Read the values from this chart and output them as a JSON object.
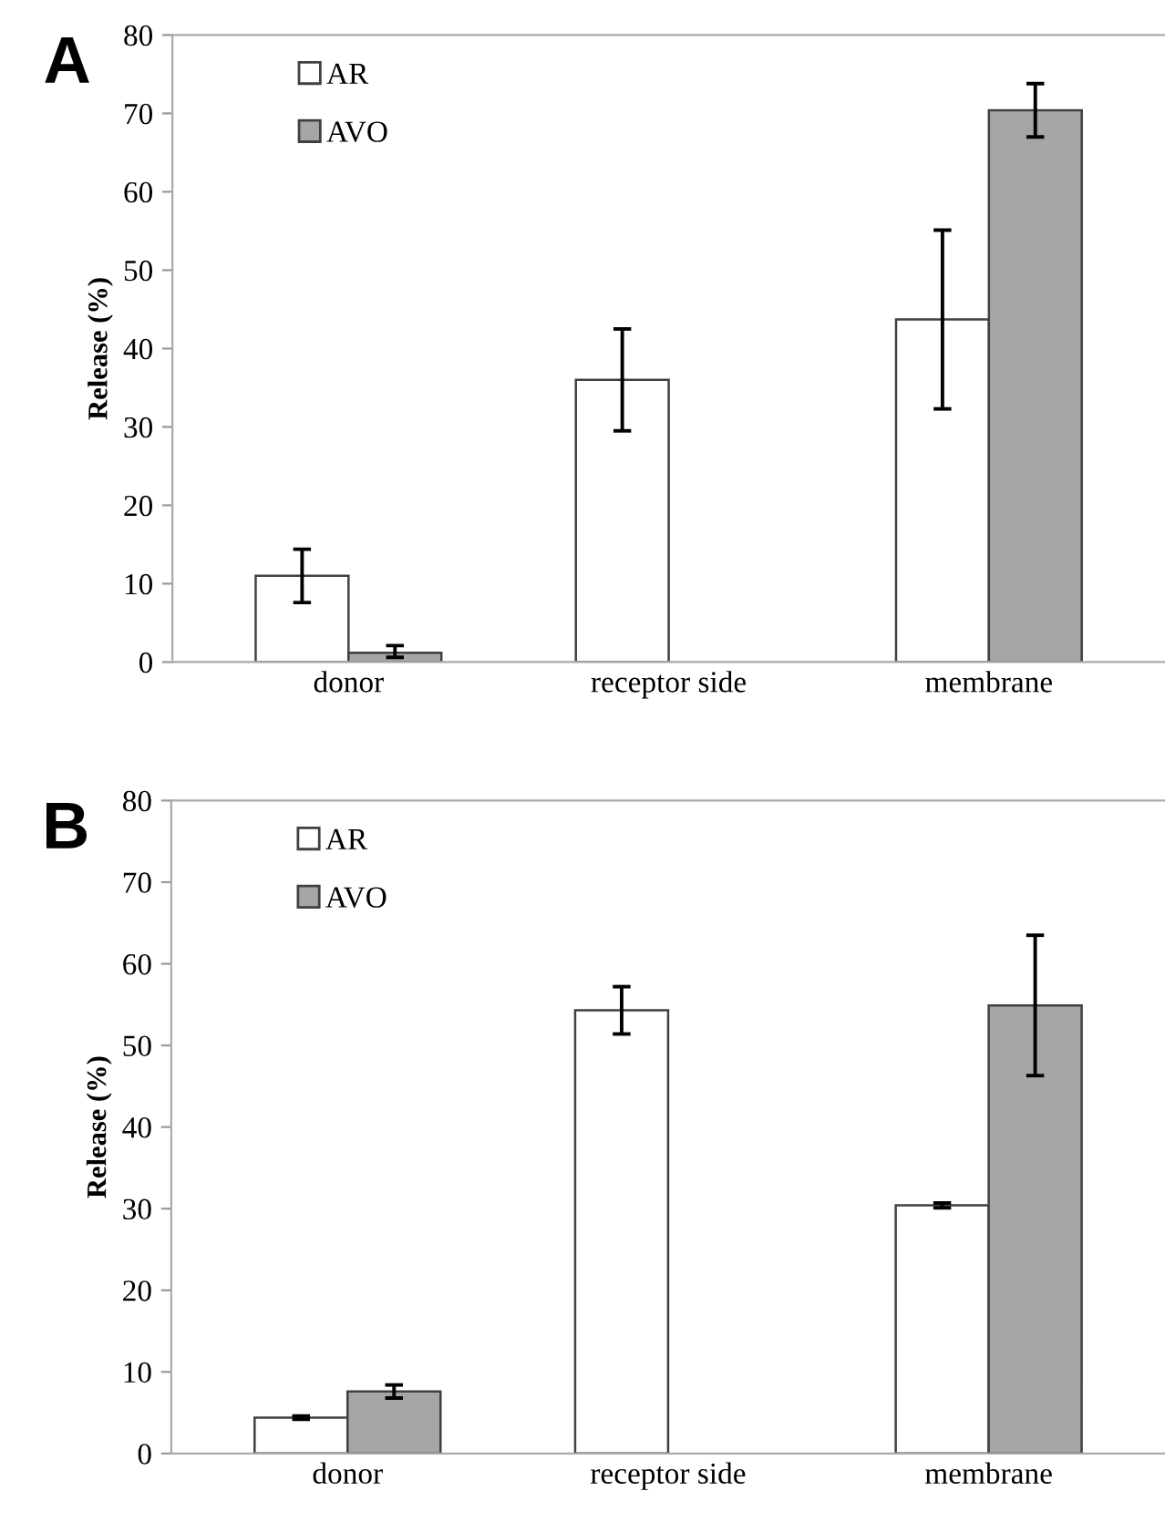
{
  "chart_data": [
    {
      "type": "bar",
      "ylabel": "Release (%)",
      "annotations": [
        "A"
      ],
      "categories": [
        "donor",
        "receptor side",
        "membrane"
      ],
      "series": [
        {
          "name": "AR",
          "color": "#ffffff",
          "values": [
            11.0,
            36.0,
            43.7
          ],
          "errors": [
            3.4,
            6.5,
            11.4
          ]
        },
        {
          "name": "AVO",
          "color": "#a6a6a6",
          "values": [
            1.2,
            null,
            70.4
          ],
          "errors": [
            [
              0.6,
              2.1
            ],
            null,
            3.4
          ]
        }
      ],
      "ylim": [
        0,
        80
      ],
      "yticks": [
        0,
        10,
        20,
        30,
        40,
        50,
        60,
        70,
        80
      ],
      "grid": false,
      "legend": "top left"
    },
    {
      "type": "bar",
      "ylabel": "Release (%)",
      "annotations": [
        "B"
      ],
      "categories": [
        "donor",
        "receptor side",
        "membrane"
      ],
      "series": [
        {
          "name": "AR",
          "color": "#ffffff",
          "values": [
            4.4,
            54.3,
            30.4
          ],
          "errors": [
            0.2,
            2.9,
            0.3
          ]
        },
        {
          "name": "AVO",
          "color": "#a6a6a6",
          "values": [
            7.6,
            null,
            54.9
          ],
          "errors": [
            0.8,
            null,
            8.6
          ]
        }
      ],
      "ylim": [
        0,
        80
      ],
      "yticks": [
        0,
        10,
        20,
        30,
        40,
        50,
        60,
        70,
        80
      ],
      "grid": false,
      "legend": "top left"
    }
  ]
}
